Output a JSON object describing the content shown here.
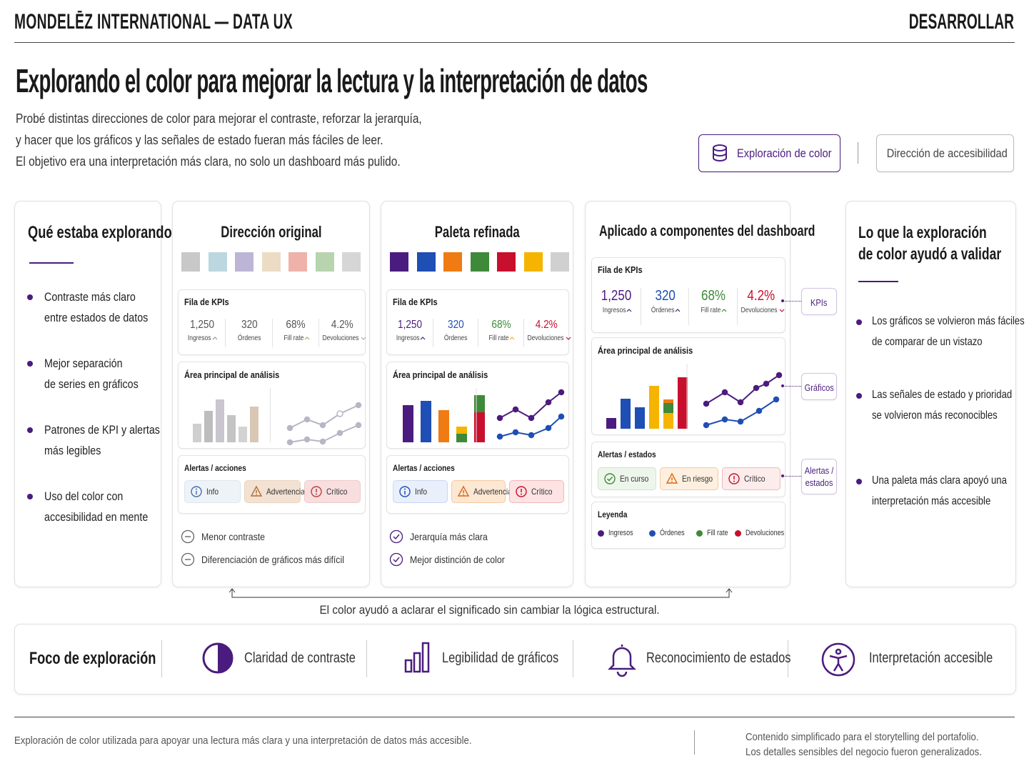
{
  "header": {
    "brand": "MONDELĒZ INTERNATIONAL — DATA UX",
    "section": "DESARROLLAR"
  },
  "hero": {
    "title": "Explorando el color para mejorar la lectura y la interpretación de datos",
    "lines": [
      "Probé distintas direcciones de color para mejorar el contraste, reforzar la jerarquía,",
      "y hacer que los gráficos y las señales de estado fueran más fáciles de leer.",
      "El objetivo era una interpretación más clara, no solo un dashboard más pulido."
    ],
    "tabs": [
      "Exploración de color",
      "Dirección de accesibilidad"
    ]
  },
  "exploring": {
    "title": "Qué estaba explorando",
    "items": [
      [
        "Contraste más claro",
        "entre estados de datos"
      ],
      [
        "Mejor separación",
        "de series en gráficos"
      ],
      [
        "Patrones de KPI y alertas",
        "más legibles"
      ],
      [
        "Uso del color con",
        "accesibilidad en mente"
      ]
    ]
  },
  "original": {
    "title": "Dirección original",
    "kpi_title": "Fila de KPIs",
    "kpis": [
      {
        "value": "1,250",
        "label": "Ingresos"
      },
      {
        "value": "320",
        "label": "Órdenes"
      },
      {
        "value": "68%",
        "label": "Fill rate"
      },
      {
        "value": "4.2%",
        "label": "Devoluciones"
      }
    ],
    "chart_title": "Área principal de análisis",
    "alerts_title": "Alertas / acciones",
    "alerts": [
      "Info",
      "Advertencia",
      "Crítico"
    ],
    "notes": [
      "Menor contraste",
      "Diferenciación de gráficos más difícil"
    ]
  },
  "refined": {
    "title": "Paleta refinada",
    "kpi_title": "Fila de KPIs",
    "kpis": [
      {
        "value": "1,250",
        "label": "Ingresos"
      },
      {
        "value": "320",
        "label": "Órdenes"
      },
      {
        "value": "68%",
        "label": "Fill rate"
      },
      {
        "value": "4.2%",
        "label": "Devoluciones"
      }
    ],
    "chart_title": "Área principal de análisis",
    "alerts_title": "Alertas / acciones",
    "alerts": [
      "Info",
      "Advertencia",
      "Crítico"
    ],
    "notes": [
      "Jerarquía más clara",
      "Mejor distinción de color"
    ]
  },
  "applied": {
    "title": "Aplicado a componentes del dashboard",
    "kpi_title": "Fila de KPIs",
    "kpis": [
      {
        "value": "1,250",
        "label": "Ingresos"
      },
      {
        "value": "320",
        "label": "Órdenes"
      },
      {
        "value": "68%",
        "label": "Fill rate"
      },
      {
        "value": "4.2%",
        "label": "Devoluciones"
      }
    ],
    "chart_title": "Área principal de análisis",
    "alerts_title": "Alertas / estados",
    "alerts": [
      "En curso",
      "En riesgo",
      "Crítico"
    ],
    "legend_title": "Leyenda",
    "legend": [
      "Ingresos",
      "Órdenes",
      "Fill rate",
      "Devoluciones"
    ],
    "callouts": [
      "KPIs",
      "Gráficos",
      "Alertas / estados"
    ]
  },
  "validated": {
    "title": [
      "Lo que la exploración",
      "de color ayudó a validar"
    ],
    "items": [
      [
        "Los gráficos se volvieron más fáciles",
        "de comparar de un vistazo"
      ],
      [
        "Las señales de estado y prioridad",
        "se volvieron más reconocibles"
      ],
      [
        "Una paleta más clara apoyó una",
        "interpretación más accesible"
      ]
    ]
  },
  "caption": "El color ayudó a aclarar el significado sin cambiar la lógica estructural.",
  "focus": {
    "title": "Foco de exploración",
    "items": [
      "Claridad de contraste",
      "Legibilidad de gráficos",
      "Reconocimiento de estados",
      "Interpretación accesible"
    ]
  },
  "footer": {
    "left": "Exploración de color utilizada para apoyar una lectura más clara y una interpretación de datos más accesible.",
    "right": [
      "Contenido simplificado para el storytelling del portafolio.",
      "Los detalles sensibles del negocio fueron generalizados."
    ]
  }
}
